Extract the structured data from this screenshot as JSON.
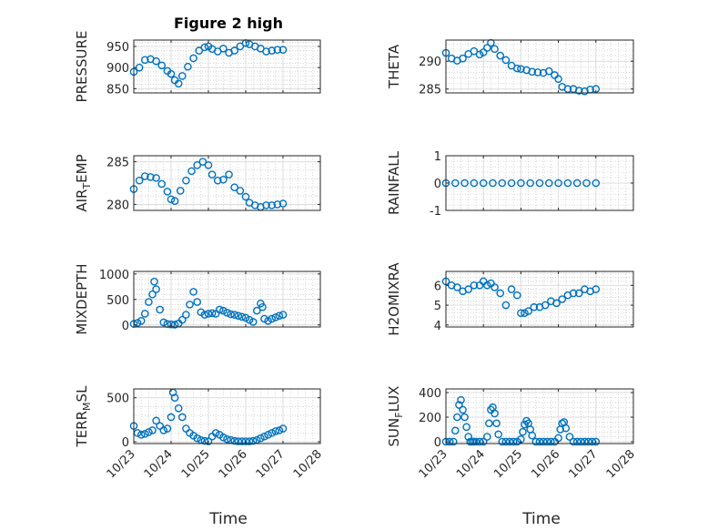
{
  "figure": {
    "title": "Figure 2 high",
    "xlabel_left": "Time",
    "xlabel_right": "Time"
  },
  "colors": {
    "marker": "#0072BD",
    "axis": "#262626",
    "grid": "#b8b8b8",
    "background": "#ffffff"
  },
  "x_ticks": [
    "10/23",
    "10/24",
    "10/25",
    "10/26",
    "10/27",
    "10/28"
  ],
  "chart_data": [
    {
      "type": "scatter",
      "ylabel": "PRESSURE",
      "ylim": [
        840,
        965
      ],
      "yticks": [
        850,
        900,
        950
      ],
      "xlim": [
        "10/23",
        "10/28"
      ],
      "grid": true,
      "title": "Figure 2 high",
      "x": [
        0,
        0.15,
        0.3,
        0.45,
        0.6,
        0.75,
        0.9,
        1.0,
        1.1,
        1.2,
        1.3,
        1.45,
        1.6,
        1.75,
        1.9,
        2.0,
        2.1,
        2.25,
        2.4,
        2.55,
        2.7,
        2.85,
        3.0,
        3.1,
        3.25,
        3.4,
        3.55,
        3.7,
        3.85,
        4.0
      ],
      "y": [
        890,
        900,
        918,
        920,
        915,
        905,
        892,
        885,
        870,
        862,
        880,
        902,
        922,
        940,
        948,
        950,
        944,
        938,
        945,
        935,
        940,
        950,
        958,
        955,
        950,
        945,
        938,
        940,
        942,
        942
      ]
    },
    {
      "type": "scatter",
      "ylabel": "THETA",
      "ylim": [
        284.3,
        293.8
      ],
      "yticks": [
        285,
        290
      ],
      "xlim": [
        "10/23",
        "10/28"
      ],
      "grid": true,
      "x": [
        0,
        0.15,
        0.3,
        0.45,
        0.6,
        0.75,
        0.9,
        1.0,
        1.1,
        1.2,
        1.3,
        1.45,
        1.6,
        1.75,
        1.9,
        2.0,
        2.15,
        2.3,
        2.45,
        2.6,
        2.75,
        2.9,
        3.0,
        3.1,
        3.25,
        3.4,
        3.55,
        3.7,
        3.85,
        4.0
      ],
      "y": [
        291.5,
        290.5,
        290.1,
        290.5,
        291.3,
        291.8,
        291.2,
        291.6,
        292.4,
        293.3,
        292.2,
        291.0,
        290.2,
        289.2,
        288.7,
        288.6,
        288.4,
        288.1,
        288.0,
        287.9,
        288.2,
        287.5,
        286.8,
        285.4,
        285.0,
        285.0,
        284.7,
        284.6,
        284.9,
        285.0
      ]
    },
    {
      "type": "scatter",
      "ylabel": "AIR_TEMP",
      "ylim": [
        279.3,
        285.7
      ],
      "yticks": [
        280,
        285
      ],
      "xlim": [
        "10/23",
        "10/28"
      ],
      "grid": true,
      "x": [
        0,
        0.15,
        0.3,
        0.45,
        0.6,
        0.75,
        0.9,
        1.0,
        1.1,
        1.25,
        1.4,
        1.55,
        1.7,
        1.85,
        2.0,
        2.1,
        2.25,
        2.4,
        2.55,
        2.7,
        2.85,
        3.0,
        3.1,
        3.25,
        3.4,
        3.55,
        3.7,
        3.85,
        4.0
      ],
      "y": [
        281.8,
        282.8,
        283.3,
        283.2,
        283.1,
        282.4,
        281.5,
        280.6,
        280.4,
        281.6,
        282.8,
        283.9,
        284.6,
        285.0,
        284.6,
        283.5,
        282.8,
        282.9,
        283.5,
        282.0,
        281.6,
        280.9,
        280.2,
        279.9,
        279.7,
        279.9,
        279.9,
        280.0,
        280.1
      ]
    },
    {
      "type": "scatter",
      "ylabel": "RAINFALL",
      "ylim": [
        -1,
        1
      ],
      "yticks": [
        -1,
        0,
        1
      ],
      "xlim": [
        "10/23",
        "10/28"
      ],
      "grid": true,
      "x": [
        0,
        0.25,
        0.5,
        0.75,
        1.0,
        1.25,
        1.5,
        1.75,
        2.0,
        2.25,
        2.5,
        2.75,
        3.0,
        3.25,
        3.5,
        3.75,
        4.0
      ],
      "y": [
        0,
        0,
        0,
        0,
        0,
        0,
        0,
        0,
        0,
        0,
        0,
        0,
        0,
        0,
        0,
        0,
        0
      ]
    },
    {
      "type": "scatter",
      "ylabel": "MIXDEPTH",
      "ylim": [
        -40,
        1050
      ],
      "yticks": [
        0,
        500,
        1000
      ],
      "xlim": [
        "10/23",
        "10/28"
      ],
      "grid": true,
      "x": [
        0,
        0.1,
        0.2,
        0.3,
        0.4,
        0.5,
        0.55,
        0.6,
        0.7,
        0.8,
        0.9,
        1.0,
        1.1,
        1.2,
        1.3,
        1.4,
        1.5,
        1.6,
        1.7,
        1.8,
        1.9,
        2.0,
        2.1,
        2.2,
        2.3,
        2.4,
        2.5,
        2.6,
        2.7,
        2.8,
        2.9,
        3.0,
        3.1,
        3.2,
        3.3,
        3.4,
        3.45,
        3.5,
        3.6,
        3.7,
        3.8,
        3.9,
        4.0
      ],
      "y": [
        20,
        40,
        80,
        220,
        450,
        600,
        850,
        700,
        300,
        50,
        20,
        10,
        5,
        30,
        100,
        200,
        400,
        650,
        450,
        250,
        200,
        220,
        230,
        220,
        300,
        280,
        240,
        210,
        200,
        180,
        160,
        140,
        100,
        60,
        280,
        420,
        350,
        120,
        80,
        120,
        150,
        180,
        200
      ]
    },
    {
      "type": "scatter",
      "ylabel": "H2OMIXRA",
      "ylim": [
        3.9,
        6.7
      ],
      "yticks": [
        4,
        5,
        6
      ],
      "xlim": [
        "10/23",
        "10/28"
      ],
      "grid": true,
      "x": [
        0,
        0.15,
        0.3,
        0.45,
        0.6,
        0.75,
        0.9,
        1.0,
        1.1,
        1.2,
        1.3,
        1.45,
        1.6,
        1.75,
        1.9,
        2.0,
        2.1,
        2.2,
        2.35,
        2.5,
        2.65,
        2.8,
        2.95,
        3.1,
        3.25,
        3.4,
        3.55,
        3.7,
        3.85,
        4.0
      ],
      "y": [
        6.2,
        6.0,
        5.9,
        5.7,
        5.8,
        6.0,
        6.0,
        6.2,
        6.0,
        6.1,
        5.9,
        5.6,
        5.0,
        5.8,
        5.5,
        4.6,
        4.6,
        4.7,
        4.9,
        4.9,
        5.0,
        5.2,
        5.1,
        5.3,
        5.5,
        5.6,
        5.6,
        5.8,
        5.7,
        5.8
      ]
    },
    {
      "type": "scatter",
      "ylabel": "TERR_MSL",
      "ylim": [
        -20,
        600
      ],
      "yticks": [
        0,
        500
      ],
      "xlim": [
        "10/23",
        "10/28"
      ],
      "grid": true,
      "x": [
        0,
        0.1,
        0.2,
        0.3,
        0.4,
        0.5,
        0.6,
        0.7,
        0.8,
        0.9,
        1.0,
        1.05,
        1.1,
        1.2,
        1.3,
        1.4,
        1.5,
        1.6,
        1.7,
        1.8,
        1.9,
        2.0,
        2.1,
        2.2,
        2.3,
        2.4,
        2.5,
        2.6,
        2.7,
        2.8,
        2.9,
        3.0,
        3.1,
        3.2,
        3.3,
        3.4,
        3.5,
        3.6,
        3.7,
        3.8,
        3.9,
        4.0
      ],
      "y": [
        180,
        100,
        80,
        90,
        110,
        130,
        240,
        180,
        130,
        150,
        280,
        560,
        500,
        380,
        280,
        150,
        100,
        70,
        40,
        20,
        10,
        5,
        60,
        100,
        80,
        50,
        30,
        20,
        10,
        5,
        5,
        5,
        5,
        10,
        20,
        40,
        60,
        80,
        100,
        120,
        130,
        150
      ]
    },
    {
      "type": "scatter",
      "ylabel": "SUN_FLUX",
      "ylim": [
        -15,
        430
      ],
      "yticks": [
        0,
        200,
        400
      ],
      "xlim": [
        "10/23",
        "10/28"
      ],
      "grid": true,
      "x": [
        0,
        0.1,
        0.2,
        0.25,
        0.3,
        0.35,
        0.4,
        0.45,
        0.5,
        0.55,
        0.6,
        0.65,
        0.7,
        0.75,
        0.8,
        0.9,
        1.0,
        1.1,
        1.15,
        1.2,
        1.25,
        1.3,
        1.35,
        1.4,
        1.5,
        1.6,
        1.7,
        1.8,
        1.9,
        2.0,
        2.05,
        2.1,
        2.15,
        2.2,
        2.25,
        2.3,
        2.4,
        2.5,
        2.6,
        2.7,
        2.8,
        2.9,
        3.0,
        3.05,
        3.1,
        3.15,
        3.2,
        3.3,
        3.4,
        3.5,
        3.6,
        3.7,
        3.8,
        3.9,
        4.0
      ],
      "y": [
        0,
        0,
        0,
        90,
        200,
        300,
        340,
        260,
        200,
        120,
        40,
        0,
        0,
        0,
        0,
        0,
        0,
        40,
        150,
        260,
        280,
        230,
        150,
        60,
        0,
        0,
        0,
        0,
        0,
        20,
        80,
        140,
        170,
        150,
        100,
        50,
        0,
        0,
        0,
        0,
        0,
        0,
        30,
        100,
        150,
        160,
        110,
        40,
        0,
        0,
        0,
        0,
        0,
        0,
        0
      ]
    }
  ]
}
